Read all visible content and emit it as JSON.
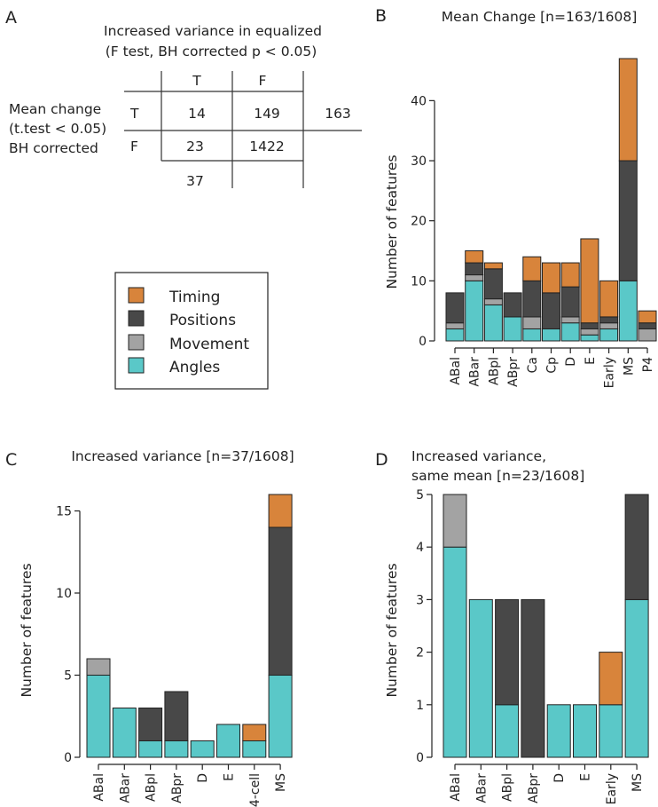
{
  "colors": {
    "Timing": "#d8843b",
    "Positions": "#484848",
    "Movement": "#a3a3a3",
    "Angles": "#5ac8c8"
  },
  "panel_a": {
    "letter": "A",
    "title_line1": "Increased variance in equalized",
    "title_line2": "(F test, BH corrected p < 0.05)",
    "row_label_line1": "Mean change",
    "row_label_line2": "(t.test < 0.05)",
    "row_label_line3": "BH corrected",
    "col_headers": [
      "T",
      "F"
    ],
    "row_headers": [
      "T",
      "F"
    ],
    "cells": [
      [
        "14",
        "149",
        "163"
      ],
      [
        "23",
        "1422",
        ""
      ]
    ],
    "col_total": "37"
  },
  "legend": {
    "items": [
      {
        "label": "Timing",
        "color_key": "Timing"
      },
      {
        "label": "Positions",
        "color_key": "Positions"
      },
      {
        "label": "Movement",
        "color_key": "Movement"
      },
      {
        "label": "Angles",
        "color_key": "Angles"
      }
    ]
  },
  "chart_data": [
    {
      "panel": "B",
      "type": "bar",
      "stacked": true,
      "title": "Mean Change [n=163/1608]",
      "xlabel": "",
      "ylabel": "Number of features",
      "ylim": [
        0,
        47
      ],
      "yticks": [
        0,
        10,
        20,
        30,
        40
      ],
      "categories": [
        "ABal",
        "ABar",
        "ABpl",
        "ABpr",
        "Ca",
        "Cp",
        "D",
        "E",
        "Early",
        "MS",
        "P4"
      ],
      "series": [
        {
          "name": "Angles",
          "values": [
            2,
            10,
            6,
            4,
            2,
            2,
            3,
            1,
            2,
            10,
            0
          ]
        },
        {
          "name": "Movement",
          "values": [
            1,
            1,
            1,
            0,
            2,
            0,
            1,
            1,
            1,
            0,
            2
          ]
        },
        {
          "name": "Positions",
          "values": [
            5,
            2,
            5,
            4,
            6,
            6,
            5,
            1,
            1,
            20,
            1
          ]
        },
        {
          "name": "Timing",
          "values": [
            0,
            2,
            1,
            0,
            4,
            5,
            4,
            14,
            6,
            17,
            2
          ]
        }
      ]
    },
    {
      "panel": "C",
      "type": "bar",
      "stacked": true,
      "title": "Increased variance [n=37/1608]",
      "xlabel": "",
      "ylabel": "Number of features",
      "ylim": [
        0,
        16
      ],
      "yticks": [
        0,
        5,
        10,
        15
      ],
      "categories": [
        "ABal",
        "ABar",
        "ABpl",
        "ABpr",
        "D",
        "E",
        "4-cell",
        "MS"
      ],
      "series": [
        {
          "name": "Angles",
          "values": [
            5,
            3,
            1,
            1,
            1,
            2,
            1,
            5
          ]
        },
        {
          "name": "Movement",
          "values": [
            1,
            0,
            0,
            0,
            0,
            0,
            0,
            0
          ]
        },
        {
          "name": "Positions",
          "values": [
            0,
            0,
            2,
            3,
            0,
            0,
            0,
            9
          ]
        },
        {
          "name": "Timing",
          "values": [
            0,
            0,
            0,
            0,
            0,
            0,
            1,
            2
          ]
        }
      ]
    },
    {
      "panel": "D",
      "type": "bar",
      "stacked": true,
      "title": "Increased variance,",
      "title_line2": "same mean [n=23/1608]",
      "xlabel": "",
      "ylabel": "Number of features",
      "ylim": [
        0,
        5
      ],
      "yticks": [
        0,
        1,
        2,
        3,
        4,
        5
      ],
      "categories": [
        "ABal",
        "ABar",
        "ABpl",
        "ABpr",
        "D",
        "E",
        "Early",
        "MS"
      ],
      "series": [
        {
          "name": "Angles",
          "values": [
            4,
            3,
            1,
            0,
            1,
            1,
            1,
            3
          ]
        },
        {
          "name": "Movement",
          "values": [
            1,
            0,
            0,
            0,
            0,
            0,
            0,
            0
          ]
        },
        {
          "name": "Positions",
          "values": [
            0,
            0,
            2,
            3,
            0,
            0,
            0,
            2
          ]
        },
        {
          "name": "Timing",
          "values": [
            0,
            0,
            0,
            0,
            0,
            0,
            1,
            0
          ]
        }
      ]
    }
  ]
}
